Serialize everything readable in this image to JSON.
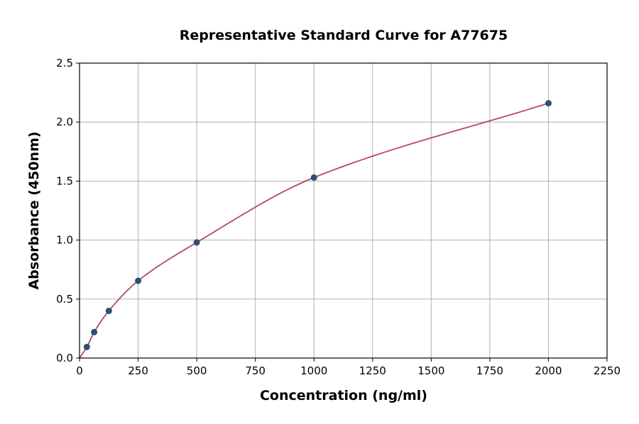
{
  "chart_data": {
    "type": "scatter",
    "title": "Representative Standard Curve for A77675",
    "xlabel": "Concentration (ng/ml)",
    "ylabel": "Absorbance (450nm)",
    "xlim": [
      0,
      2250
    ],
    "ylim": [
      0,
      2.5
    ],
    "xticks": [
      0,
      250,
      500,
      750,
      1000,
      1250,
      1500,
      1750,
      2000,
      2250
    ],
    "yticks": [
      0.0,
      0.5,
      1.0,
      1.5,
      2.0,
      2.5
    ],
    "ytick_labels": [
      "0.0",
      "0.5",
      "1.0",
      "1.5",
      "2.0",
      "2.5"
    ],
    "grid": true,
    "x": [
      31.25,
      62.5,
      125,
      250,
      500,
      1000,
      2000
    ],
    "y": [
      0.094,
      0.22,
      0.4,
      0.655,
      0.98,
      1.53,
      2.16
    ],
    "point_color": "#2d4e75",
    "curve_color": "#b5476b"
  }
}
